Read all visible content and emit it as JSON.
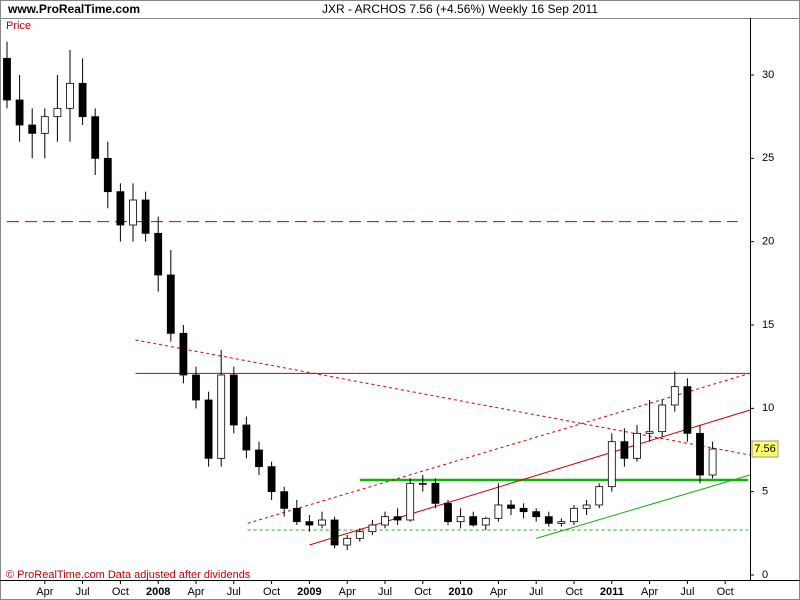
{
  "chart_data": {
    "type": "candlestick",
    "site": "www.ProRealTime.com",
    "title": "JXR - ARCHOS    7.56 (+4.56%)    Weekly  16 Sep 2011",
    "y_label": "Price",
    "footer": "© ProRealTime.com  Data adjusted after dividends",
    "categories": [
      null,
      null,
      null,
      "Apr",
      null,
      null,
      "Jul",
      null,
      null,
      "Oct",
      null,
      null,
      "2008",
      null,
      null,
      "Apr",
      null,
      null,
      "Jul",
      null,
      null,
      "Oct",
      null,
      null,
      "2009",
      null,
      null,
      "Apr",
      null,
      null,
      "Jul",
      null,
      null,
      "Oct",
      null,
      null,
      "2010",
      null,
      null,
      "Apr",
      null,
      null,
      "Jul",
      null,
      null,
      "Oct",
      null,
      null,
      "2011",
      null,
      null,
      "Apr",
      null,
      null,
      "Jul",
      null,
      null,
      "Oct"
    ],
    "open": [
      31,
      28.5,
      27,
      26.5,
      27.5,
      28,
      29.5,
      27.5,
      25,
      23,
      21,
      22.5,
      20.5,
      18,
      14.5,
      12,
      10.5,
      7,
      12,
      9,
      7.5,
      6.5,
      5,
      4,
      3.2,
      3,
      3.3,
      1.8,
      2.2,
      2.6,
      3,
      3.5,
      3.3,
      5.5,
      5.5,
      4.3,
      3.2,
      3.5,
      3,
      3.4,
      4.2,
      4,
      3.8,
      3.5,
      3.1,
      3.2,
      4,
      4.2,
      5.3,
      8,
      7,
      8.5,
      8.6,
      10.2,
      11.3,
      8.5,
      6,
      null
    ],
    "high": [
      32,
      30,
      28,
      28,
      30,
      31.5,
      31,
      28,
      26,
      23.5,
      23.5,
      23,
      21.5,
      19.5,
      15,
      12.5,
      11,
      13.5,
      12.5,
      9.5,
      8,
      6.8,
      5.3,
      4.5,
      3.6,
      3.8,
      3.5,
      2.4,
      2.8,
      3.3,
      3.8,
      4,
      5.8,
      6,
      5.8,
      4.5,
      4,
      3.8,
      3.5,
      5.5,
      4.5,
      4.3,
      4,
      3.8,
      3.4,
      4.2,
      4.5,
      5.5,
      8.5,
      8.8,
      9,
      10.5,
      10.5,
      12.2,
      11.8,
      9,
      8,
      null
    ],
    "low": [
      28,
      26,
      25,
      25,
      26,
      26,
      27,
      24,
      22,
      20,
      20,
      20,
      17,
      14,
      11.5,
      10,
      6.5,
      6.5,
      8.5,
      7,
      6,
      4.5,
      3.5,
      3,
      2.6,
      2.8,
      1.6,
      1.5,
      2,
      2.4,
      2.8,
      3,
      3.2,
      5,
      4,
      3,
      2.8,
      2.9,
      2.7,
      3.2,
      3.6,
      3.4,
      3.2,
      2.9,
      2.9,
      3,
      3.6,
      4,
      5,
      6.5,
      6.8,
      8,
      8.3,
      9.8,
      8,
      5.5,
      5.8,
      null
    ],
    "close": [
      28.5,
      27,
      26.5,
      27.5,
      28,
      29.5,
      27.5,
      25,
      23,
      21,
      22.5,
      20.5,
      18,
      14.5,
      12,
      10.5,
      7,
      12,
      9,
      7.5,
      6.5,
      5,
      4,
      3.2,
      3,
      3.3,
      1.8,
      2.2,
      2.6,
      3,
      3.5,
      3.3,
      5.5,
      5.5,
      4.3,
      3.2,
      3.5,
      3,
      3.4,
      4.2,
      4,
      3.8,
      3.5,
      3.1,
      3.2,
      4,
      4.2,
      5.3,
      8,
      7,
      8.5,
      8.6,
      10.2,
      11.3,
      8.5,
      6,
      7.56,
      null
    ],
    "ylim": [
      -0.3,
      33.3
    ],
    "yticks": [
      0,
      5,
      10,
      15,
      20,
      25,
      30
    ],
    "lines": [
      {
        "color": "#d00000",
        "style": "dashed",
        "x": [
          0,
          58
        ],
        "y": [
          21.2,
          21.2
        ]
      },
      {
        "color": "#d00000",
        "style": "solid",
        "x": [
          10.2,
          59
        ],
        "y": [
          12.1,
          12.1
        ]
      },
      {
        "color": "#10b010",
        "style": "thick",
        "x": [
          28,
          58.8
        ],
        "y": [
          5.7,
          5.7
        ]
      },
      {
        "color": "#10b010",
        "style": "dotted",
        "x": [
          19.1,
          58.8
        ],
        "y": [
          2.7,
          2.7
        ]
      },
      {
        "color": "#d00000",
        "style": "dotted",
        "x": [
          10.2,
          59
        ],
        "y": [
          14.1,
          7.2
        ]
      },
      {
        "color": "#d00000",
        "style": "solid",
        "x": [
          24,
          59
        ],
        "y": [
          1.8,
          9.9
        ]
      },
      {
        "color": "#d00000",
        "style": "dotted",
        "x": [
          19.1,
          59
        ],
        "y": [
          3.1,
          12.1
        ]
      },
      {
        "color": "#10b010",
        "style": "solid",
        "x": [
          42,
          59
        ],
        "y": [
          2.2,
          6
        ]
      }
    ]
  }
}
